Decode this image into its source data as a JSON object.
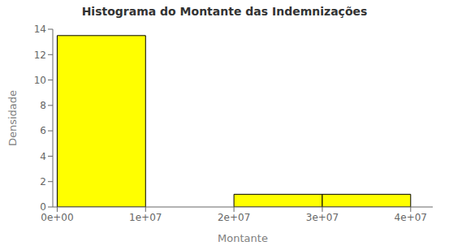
{
  "chart_data": {
    "type": "histogram",
    "title": "Histograma do Montante das Indemnizações",
    "xlabel": "Montante",
    "ylabel": "Densidade",
    "bins": [
      0,
      10000000,
      20000000,
      30000000,
      40000000
    ],
    "counts": [
      13.5,
      0,
      1.0,
      1.0
    ],
    "color": "#ffff00",
    "xlim": [
      -500000,
      42500000
    ],
    "xticks": [
      {
        "value": 0,
        "label": "0e+00"
      },
      {
        "value": 10000000,
        "label": "1e+07"
      },
      {
        "value": 20000000,
        "label": "2e+07"
      },
      {
        "value": 30000000,
        "label": "3e+07"
      },
      {
        "value": 40000000,
        "label": "4e+07"
      }
    ],
    "ylim": [
      0,
      14
    ],
    "yticks": [
      0,
      2,
      4,
      6,
      8,
      10,
      12,
      14
    ],
    "grid": false
  }
}
